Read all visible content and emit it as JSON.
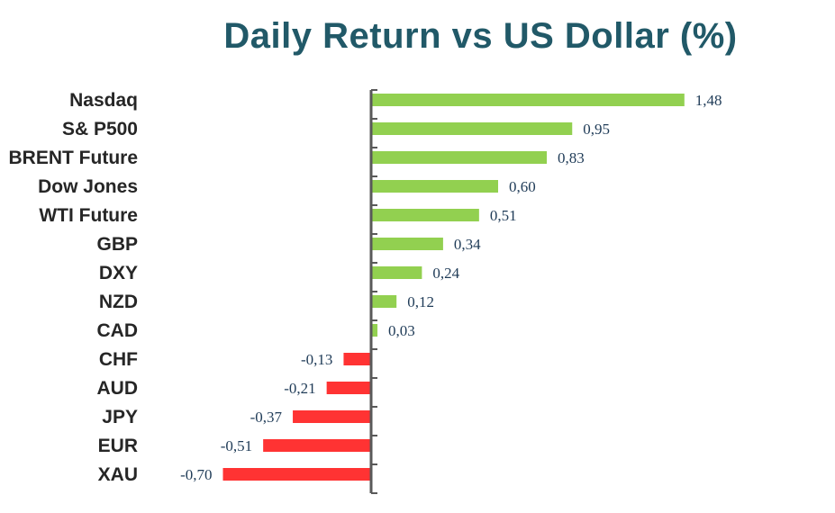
{
  "chart_data": {
    "type": "bar",
    "orientation": "horizontal",
    "title": "Daily Return vs US Dollar (%)",
    "categories": [
      "Nasdaq",
      "S& P500",
      "BRENT Future",
      "Dow Jones",
      "WTI Future",
      "GBP",
      "DXY",
      "NZD",
      "CAD",
      "CHF",
      "AUD",
      "JPY",
      "EUR",
      "XAU"
    ],
    "values": [
      1.48,
      0.95,
      0.83,
      0.6,
      0.51,
      0.34,
      0.24,
      0.12,
      0.03,
      -0.13,
      -0.21,
      -0.37,
      -0.51,
      -0.7
    ],
    "value_labels": [
      "1,48",
      "0,95",
      "0,83",
      "0,60",
      "0,51",
      "0,34",
      "0,24",
      "0,12",
      "0,03",
      "-0,13",
      "-0,21",
      "-0,37",
      "-0,51",
      "-0,70"
    ],
    "xlim": [
      -0.7,
      1.48
    ],
    "grid": false,
    "legend": "none",
    "colors": {
      "positive": "#92d050",
      "negative": "#ff3333",
      "axis": "#595959",
      "title": "#215968"
    }
  }
}
